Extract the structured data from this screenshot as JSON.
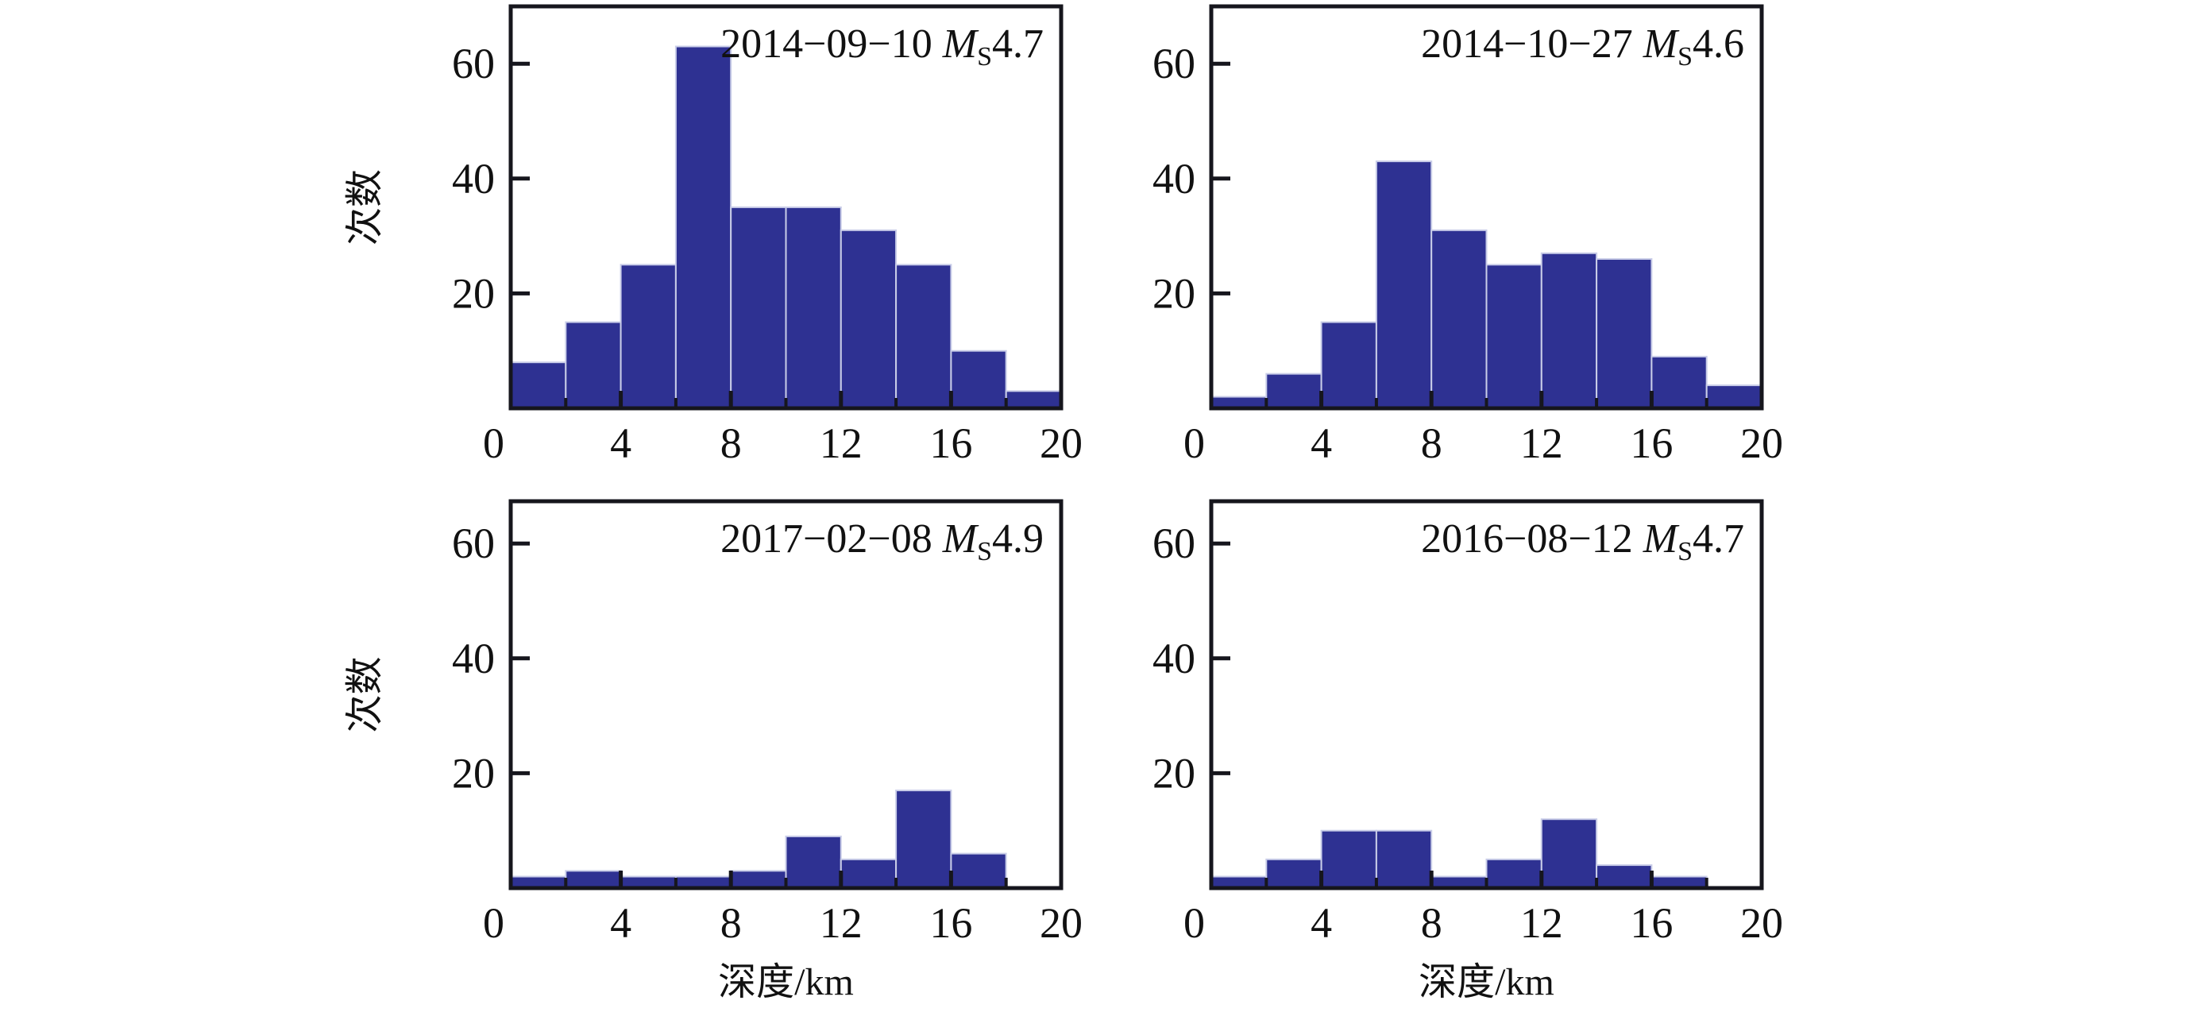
{
  "figure_title": "",
  "chart_data": {
    "type": "bar",
    "subtype": "histogram-grid",
    "grid": "off",
    "xlabel": "深度/km",
    "ylabel": "次数",
    "xlim": [
      0,
      20
    ],
    "ylim": [
      0,
      70
    ],
    "x_ticks": [
      0,
      4,
      8,
      12,
      16,
      20
    ],
    "x_minor_ticks": [
      2,
      6,
      10,
      14,
      18
    ],
    "y_ticks": [
      0,
      20,
      40,
      60
    ],
    "bin_width_km": 2,
    "bin_edges": [
      0,
      2,
      4,
      6,
      8,
      10,
      12,
      14,
      16,
      18,
      20
    ],
    "bar_color": "#2e3192",
    "bar_edge_color": "#c9cde8",
    "axis_color": "#16161d",
    "legend_position": "none",
    "panels": [
      {
        "id": "top-left",
        "title_date": "2014−09−10",
        "magnitude_symbol": "M",
        "magnitude_subscript": "S",
        "magnitude_value": "4.7",
        "values": [
          8,
          15,
          25,
          63,
          35,
          35,
          31,
          25,
          10,
          3
        ]
      },
      {
        "id": "top-right",
        "title_date": "2014−10−27",
        "magnitude_symbol": "M",
        "magnitude_subscript": "S",
        "magnitude_value": "4.6",
        "values": [
          2,
          6,
          15,
          43,
          31,
          25,
          27,
          26,
          9,
          4
        ]
      },
      {
        "id": "bottom-left",
        "title_date": "2017−02−08",
        "magnitude_symbol": "M",
        "magnitude_subscript": "S",
        "magnitude_value": "4.9",
        "values": [
          2,
          3,
          2,
          2,
          3,
          9,
          5,
          17,
          6,
          0
        ]
      },
      {
        "id": "bottom-right",
        "title_date": "2016−08−12",
        "magnitude_symbol": "M",
        "magnitude_subscript": "S",
        "magnitude_value": "4.7",
        "values": [
          2,
          5,
          10,
          10,
          2,
          5,
          12,
          4,
          2,
          0
        ]
      }
    ]
  }
}
